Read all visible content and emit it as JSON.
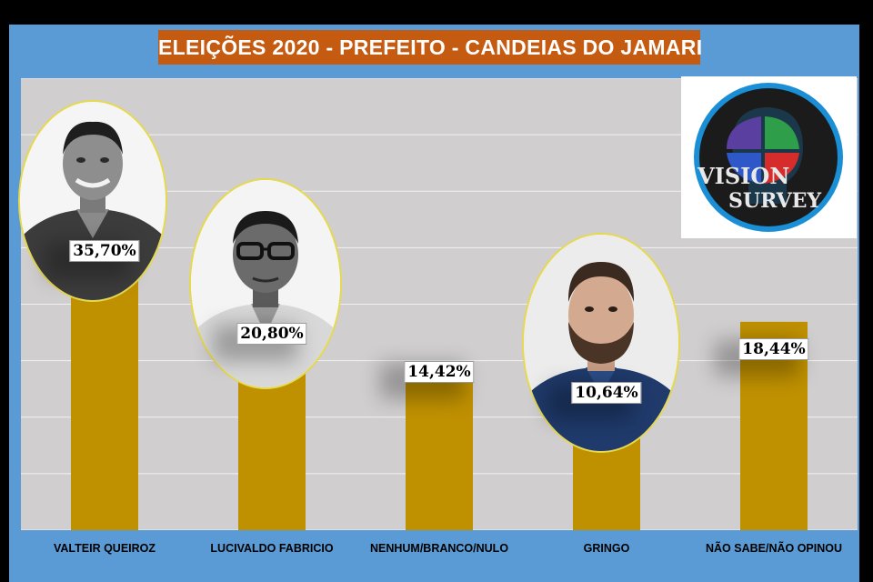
{
  "title": "ELEIÇÕES 2020 - PREFEITO - CANDEIAS DO JAMARI",
  "logo": {
    "line1": "VISION",
    "line2": "SURVEY"
  },
  "chart_data": {
    "type": "bar",
    "categories": [
      "VALTEIR QUEIROZ",
      "LUCIVALDO FABRICIO",
      "NENHUM/BRANCO/NULO",
      "GRINGO",
      "NÃO SABE/NÃO OPINOU"
    ],
    "values": [
      35.7,
      20.8,
      14.42,
      10.64,
      18.44
    ],
    "data_labels": [
      "35,70%",
      "20,80%",
      "14,42%",
      "10,64%",
      "18,44%"
    ],
    "ylim": [
      0,
      40
    ],
    "grid": true,
    "bar_color": "#bf9000",
    "plot_background": "#d0cece"
  },
  "colors": {
    "frame": "#5b9bd5",
    "title_bg": "#c55a11",
    "bar": "#bf9000"
  }
}
